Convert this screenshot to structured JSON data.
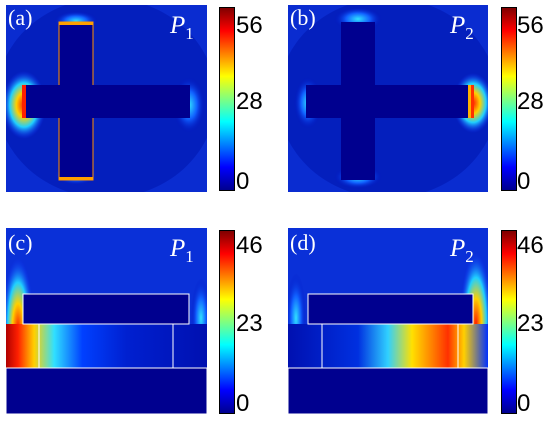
{
  "panels": [
    {
      "label": "(a)",
      "polarization": "P",
      "polarization_index": "1"
    },
    {
      "label": "(b)",
      "polarization": "P",
      "polarization_index": "2"
    },
    {
      "label": "(c)",
      "polarization": "P",
      "polarization_index": "1"
    },
    {
      "label": "(d)",
      "polarization": "P",
      "polarization_index": "2"
    }
  ],
  "colorbars": [
    {
      "ticks": [
        "56",
        "28",
        "0"
      ]
    },
    {
      "ticks": [
        "56",
        "28",
        "0"
      ]
    },
    {
      "ticks": [
        "46",
        "23",
        "0"
      ]
    },
    {
      "ticks": [
        "46",
        "23",
        "0"
      ]
    }
  ],
  "colors": {
    "low": "#00008f",
    "mid": "#00ffff",
    "high": "#800000"
  }
}
